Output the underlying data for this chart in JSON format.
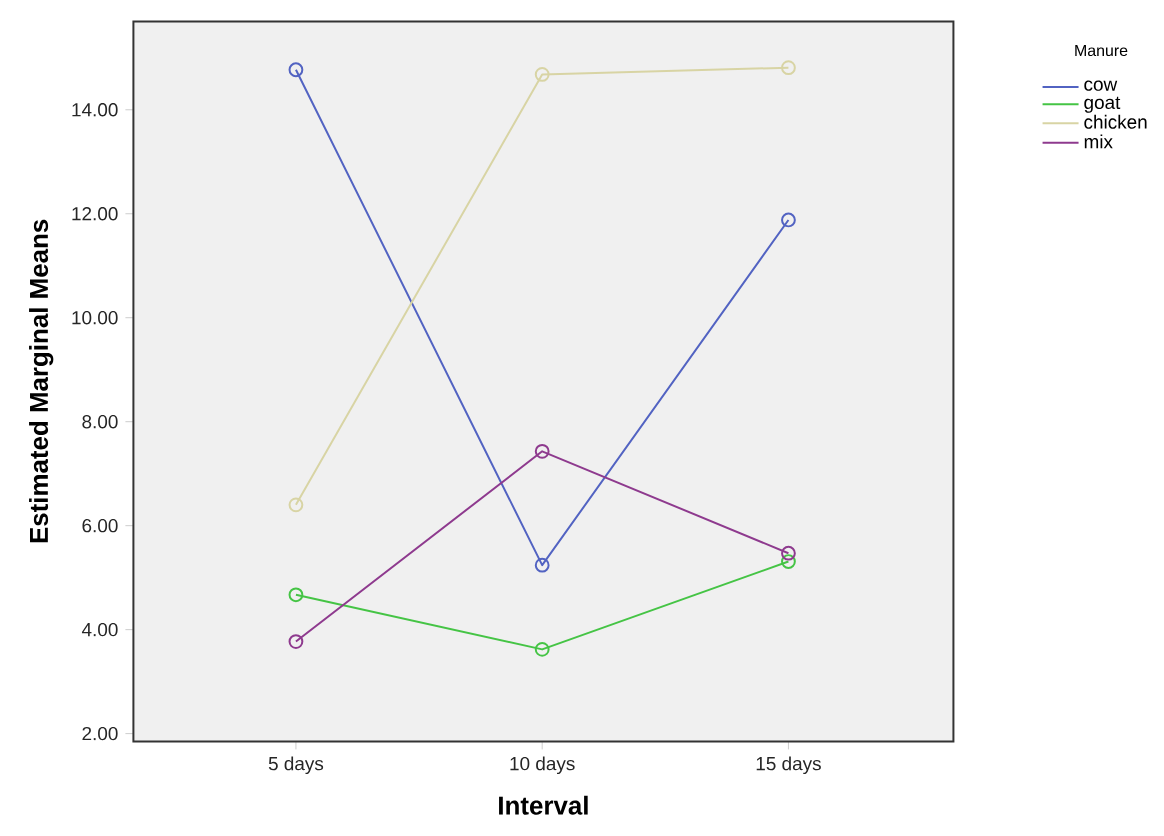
{
  "chart_data": {
    "type": "line",
    "xlabel": "Interval",
    "ylabel": "Estimated Marginal Means",
    "legend_title": "Manure",
    "categories": [
      "5 days",
      "10 days",
      "15 days"
    ],
    "series": [
      {
        "name": "cow",
        "color": "#5263c2",
        "values": [
          14.77,
          5.24,
          11.88
        ]
      },
      {
        "name": "goat",
        "color": "#45c445",
        "values": [
          4.67,
          3.62,
          5.31
        ]
      },
      {
        "name": "chicken",
        "color": "#d8d4a4",
        "values": [
          6.4,
          14.68,
          14.81
        ]
      },
      {
        "name": "mix",
        "color": "#8e3a8e",
        "values": [
          3.77,
          7.43,
          5.47
        ]
      }
    ],
    "ylim": [
      1.85,
      15.7
    ],
    "yticks": [
      {
        "value": 2,
        "label": "2.00"
      },
      {
        "value": 4,
        "label": "4.00"
      },
      {
        "value": 6,
        "label": "6.00"
      },
      {
        "value": 8,
        "label": "8.00"
      },
      {
        "value": 10,
        "label": "10.00"
      },
      {
        "value": 12,
        "label": "12.00"
      },
      {
        "value": 14,
        "label": "14.00"
      }
    ],
    "marker": "circle",
    "line_style": "solid",
    "grid": false,
    "legend": "top right"
  }
}
